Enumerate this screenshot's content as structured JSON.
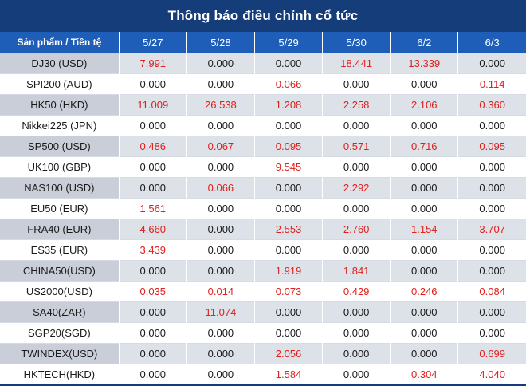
{
  "title": "Thông báo điều chỉnh cổ tức",
  "header": {
    "product_label": "Sản phẩm / Tiền tệ",
    "dates": [
      "5/27",
      "5/28",
      "5/29",
      "5/30",
      "6/2",
      "6/3"
    ]
  },
  "rows": [
    {
      "product": "DJ30 (USD)",
      "values": [
        "7.991",
        "0.000",
        "0.000",
        "18.441",
        "13.339",
        "0.000"
      ]
    },
    {
      "product": "SPI200 (AUD)",
      "values": [
        "0.000",
        "0.000",
        "0.066",
        "0.000",
        "0.000",
        "0.114"
      ]
    },
    {
      "product": "HK50 (HKD)",
      "values": [
        "11.009",
        "26.538",
        "1.208",
        "2.258",
        "2.106",
        "0.360"
      ]
    },
    {
      "product": "Nikkei225 (JPN)",
      "values": [
        "0.000",
        "0.000",
        "0.000",
        "0.000",
        "0.000",
        "0.000"
      ]
    },
    {
      "product": "SP500 (USD)",
      "values": [
        "0.486",
        "0.067",
        "0.095",
        "0.571",
        "0.716",
        "0.095"
      ]
    },
    {
      "product": "UK100 (GBP)",
      "values": [
        "0.000",
        "0.000",
        "9.545",
        "0.000",
        "0.000",
        "0.000"
      ]
    },
    {
      "product": "NAS100 (USD)",
      "values": [
        "0.000",
        "0.066",
        "0.000",
        "2.292",
        "0.000",
        "0.000"
      ]
    },
    {
      "product": "EU50 (EUR)",
      "values": [
        "1.561",
        "0.000",
        "0.000",
        "0.000",
        "0.000",
        "0.000"
      ]
    },
    {
      "product": "FRA40 (EUR)",
      "values": [
        "4.660",
        "0.000",
        "2.553",
        "2.760",
        "1.154",
        "3.707"
      ]
    },
    {
      "product": "ES35 (EUR)",
      "values": [
        "3.439",
        "0.000",
        "0.000",
        "0.000",
        "0.000",
        "0.000"
      ]
    },
    {
      "product": "CHINA50(USD)",
      "values": [
        "0.000",
        "0.000",
        "1.919",
        "1.841",
        "0.000",
        "0.000"
      ]
    },
    {
      "product": "US2000(USD)",
      "values": [
        "0.035",
        "0.014",
        "0.073",
        "0.429",
        "0.246",
        "0.084"
      ]
    },
    {
      "product": "SA40(ZAR)",
      "values": [
        "0.000",
        "11.074",
        "0.000",
        "0.000",
        "0.000",
        "0.000"
      ]
    },
    {
      "product": "SGP20(SGD)",
      "values": [
        "0.000",
        "0.000",
        "0.000",
        "0.000",
        "0.000",
        "0.000"
      ]
    },
    {
      "product": "TWINDEX(USD)",
      "values": [
        "0.000",
        "0.000",
        "2.056",
        "0.000",
        "0.000",
        "0.699"
      ]
    },
    {
      "product": "HKTECH(HKD)",
      "values": [
        "0.000",
        "0.000",
        "1.584",
        "0.000",
        "0.304",
        "4.040"
      ]
    }
  ],
  "colors": {
    "title_bg": "#143d7a",
    "header_bg": "#1e5eb8",
    "nonzero_text": "#e0201c",
    "zero_text": "#1a1a1a",
    "stripe": "#dde1e8"
  }
}
